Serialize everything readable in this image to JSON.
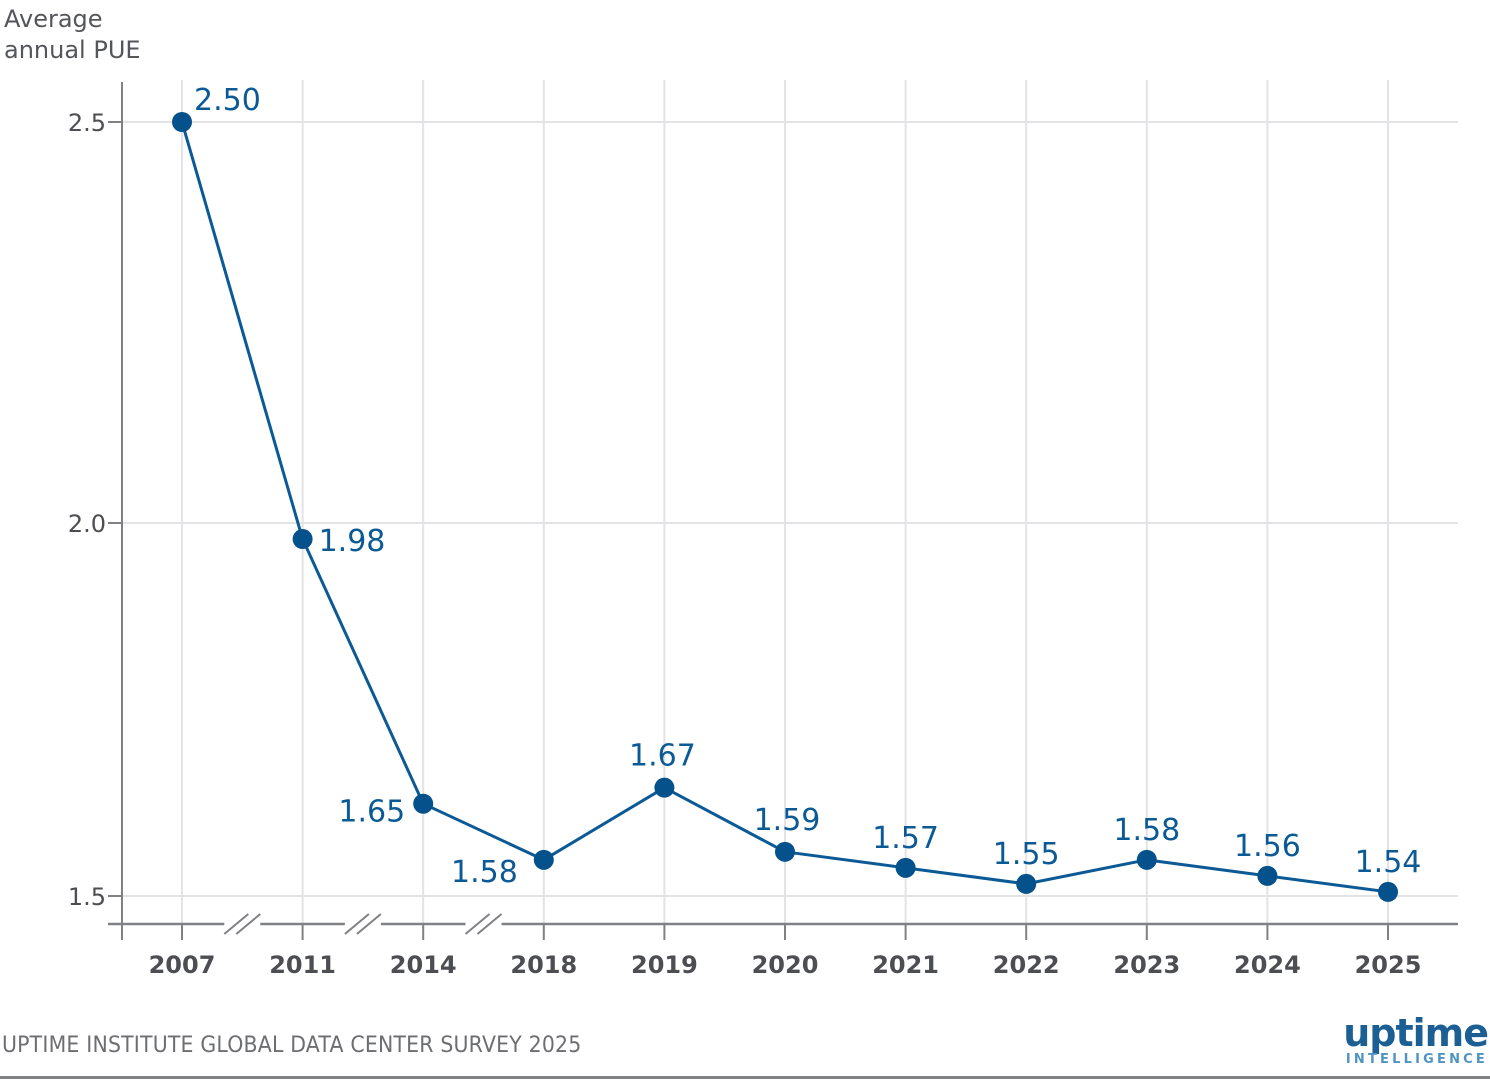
{
  "chart_data": {
    "type": "line",
    "title": "",
    "ylabel_lines": [
      "Average",
      "annual PUE"
    ],
    "xlabel": "",
    "categories": [
      "2007",
      "2011",
      "2014",
      "2018",
      "2019",
      "2020",
      "2021",
      "2022",
      "2023",
      "2024",
      "2025"
    ],
    "series": [
      {
        "name": "Average annual PUE",
        "values": [
          2.5,
          1.98,
          1.65,
          1.58,
          1.67,
          1.59,
          1.57,
          1.55,
          1.58,
          1.56,
          1.54
        ],
        "labels": [
          "2.50",
          "1.98",
          "1.65",
          "1.58",
          "1.67",
          "1.59",
          "1.57",
          "1.55",
          "1.58",
          "1.56",
          "1.54"
        ],
        "color": "#0b5a96",
        "marker_color": "#05518c"
      }
    ],
    "yticks": [
      2.5,
      2.0,
      1.5
    ],
    "ytick_labels": [
      "2.5",
      "2.0",
      "1.5"
    ],
    "ylim": [
      1.5,
      2.5
    ],
    "axis_breaks_after": [
      "2007",
      "2011",
      "2014"
    ],
    "grid": true,
    "legend": "none"
  },
  "footer": {
    "source": "UPTIME INSTITUTE GLOBAL DATA CENTER SURVEY 2025",
    "logo_main": "uptime",
    "logo_sub": "INTELLIGENCE"
  },
  "colors": {
    "line": "#0b5a96",
    "label": "#0b5a96",
    "axis": "#808184",
    "grid": "#e3e3e6",
    "tick_text": "#4d4e52"
  }
}
